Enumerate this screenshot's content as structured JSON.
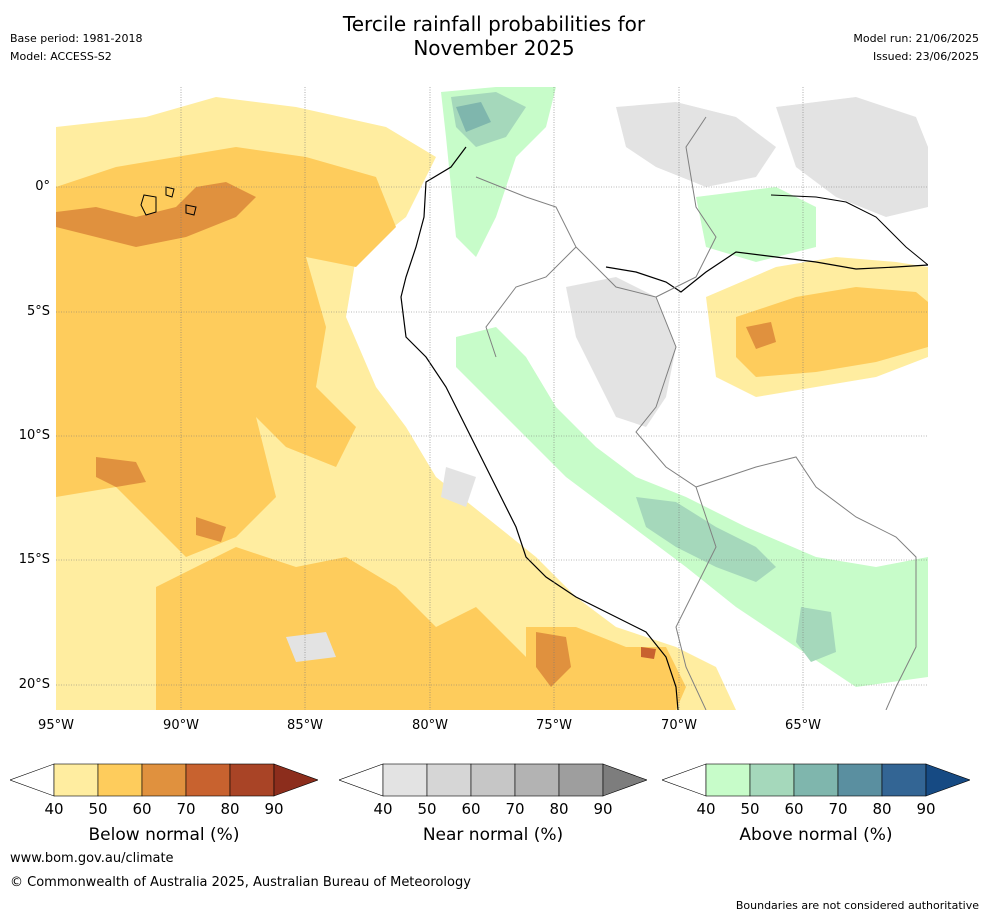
{
  "header": {
    "title_line1": "Tercile rainfall probabilities for",
    "title_line2": "November 2025",
    "base_period": "Base period: 1981-2018",
    "model": "Model: ACCESS-S2",
    "model_run": "Model run: 21/06/2025",
    "issued": "Issued: 23/06/2025"
  },
  "map": {
    "lat_labels": [
      "0°",
      "5°S",
      "10°S",
      "15°S",
      "20°S"
    ],
    "lon_labels": [
      "95°W",
      "90°W",
      "85°W",
      "80°W",
      "75°W",
      "70°W",
      "65°W"
    ]
  },
  "colorbars": [
    {
      "title": "Below normal (%)",
      "ticks": [
        "40",
        "50",
        "60",
        "70",
        "80",
        "90"
      ],
      "colors": [
        "#ffffff",
        "#ffeda0",
        "#fecc5c",
        "#e0913e",
        "#c8622f",
        "#a94426",
        "#8c2d1c"
      ]
    },
    {
      "title": "Near normal (%)",
      "ticks": [
        "40",
        "50",
        "60",
        "70",
        "80",
        "90"
      ],
      "colors": [
        "#ffffff",
        "#e3e3e3",
        "#d6d6d6",
        "#c6c6c6",
        "#b3b3b3",
        "#9e9e9e",
        "#7d7d7d"
      ]
    },
    {
      "title": "Above normal (%)",
      "ticks": [
        "40",
        "50",
        "60",
        "70",
        "80",
        "90"
      ],
      "colors": [
        "#ffffff",
        "#c7fcc9",
        "#a5d8bb",
        "#7fb6ad",
        "#5a8fa0",
        "#336594",
        "#164a83"
      ]
    }
  ],
  "footer": {
    "website": "www.bom.gov.au/climate",
    "copyright": "© Commonwealth of Australia 2025, Australian Bureau of Meteorology",
    "disclaimer": "Boundaries are not considered authoritative"
  }
}
